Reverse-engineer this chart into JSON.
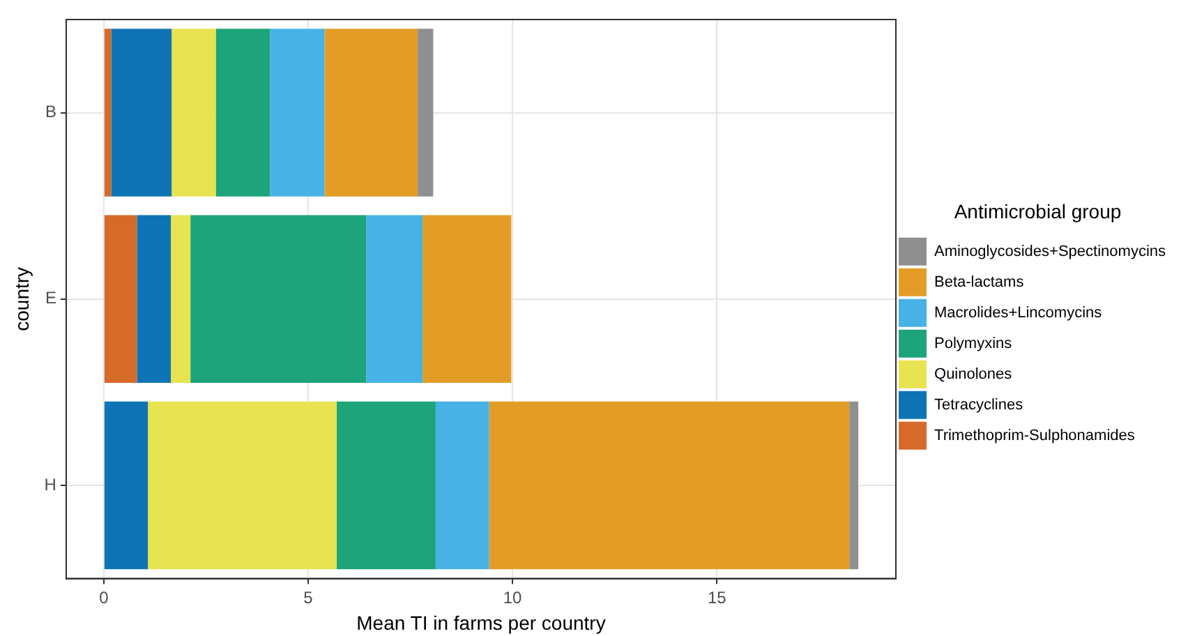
{
  "chart_data": {
    "type": "bar",
    "orientation": "horizontal",
    "stacked": true,
    "xlabel": "Mean TI in farms per country",
    "ylabel": "country",
    "legend_title": "Antimicrobial group",
    "legend": "right",
    "grid": true,
    "categories": [
      "B",
      "E",
      "H"
    ],
    "xlim": [
      -0.92,
      19.38
    ],
    "xticks": [
      0,
      5,
      10,
      15
    ],
    "series": [
      {
        "name": "Trimethoprim-Sulphonamides",
        "color": "#d66a28",
        "values": [
          0.18,
          0.81,
          0
        ]
      },
      {
        "name": "Tetracyclines",
        "color": "#0f74b5",
        "values": [
          1.48,
          0.83,
          1.08
        ]
      },
      {
        "name": "Quinolones",
        "color": "#e8e350",
        "values": [
          1.08,
          0.48,
          4.62
        ]
      },
      {
        "name": "Polymyxins",
        "color": "#1ea47b",
        "values": [
          1.33,
          4.3,
          2.42
        ]
      },
      {
        "name": "Macrolides+Lincomycins",
        "color": "#48b2e6",
        "values": [
          1.33,
          1.38,
          1.31
        ]
      },
      {
        "name": "Beta-lactams",
        "color": "#e39d27",
        "values": [
          2.28,
          2.17,
          8.81
        ]
      },
      {
        "name": "Aminoglycosides+Spectinomycins",
        "color": "#8f8f91",
        "values": [
          0.38,
          0,
          0.22
        ]
      }
    ]
  }
}
